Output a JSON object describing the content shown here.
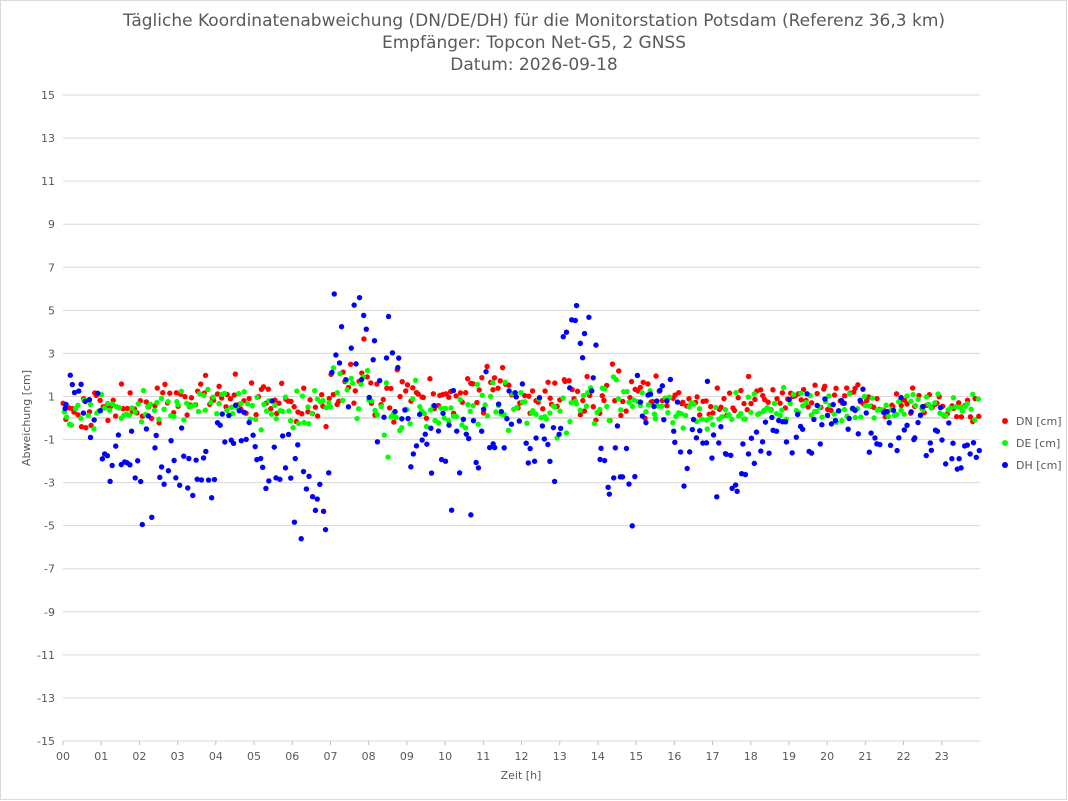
{
  "chart_data": {
    "type": "scatter",
    "title_lines": [
      "Tägliche Koordinatenabweichung (DN/DE/DH) für die Monitorstation Potsdam (Referenz 36,3 km)",
      "Empfänger: Topcon Net-G5, 2 GNSS",
      "Datum: 2026-09-18"
    ],
    "xlabel": "Zeit [h]",
    "ylabel": "Abweichung [cm]",
    "xlim": [
      0,
      24
    ],
    "ylim": [
      -15,
      15
    ],
    "x_ticks": [
      "00",
      "01",
      "02",
      "03",
      "04",
      "05",
      "06",
      "07",
      "08",
      "09",
      "10",
      "11",
      "12",
      "13",
      "14",
      "15",
      "16",
      "17",
      "18",
      "19",
      "20",
      "21",
      "22",
      "23"
    ],
    "y_ticks": [
      "15",
      "13",
      "11",
      "9",
      "7",
      "5",
      "3",
      "1",
      "-1",
      "-3",
      "-5",
      "-7",
      "-9",
      "-11",
      "-13",
      "-15"
    ],
    "legend_position": "right",
    "grid": "horizontal",
    "series": [
      {
        "name": "DN [cm]",
        "color": "#ff0000",
        "hourly_mean": [
          0.4,
          0.6,
          0.7,
          1.0,
          1.1,
          1.0,
          0.4,
          2.0,
          0.9,
          0.9,
          1.1,
          1.3,
          0.8,
          1.2,
          1.0,
          1.1,
          0.7,
          0.9,
          0.8,
          1.0,
          0.9,
          0.8,
          0.7,
          0.4
        ],
        "hourly_spread": [
          0.6,
          0.5,
          0.6,
          0.6,
          0.6,
          0.7,
          0.8,
          1.2,
          0.9,
          0.8,
          0.8,
          0.9,
          0.8,
          1.1,
          0.9,
          0.7,
          0.5,
          0.6,
          0.5,
          0.4,
          0.4,
          0.5,
          0.5,
          0.6
        ]
      },
      {
        "name": "DE [cm]",
        "color": "#00ff00",
        "hourly_mean": [
          0.3,
          0.4,
          0.4,
          0.9,
          0.6,
          0.4,
          0.6,
          1.2,
          0.1,
          0.4,
          0.3,
          0.5,
          0.3,
          0.7,
          0.9,
          0.5,
          0.3,
          0.4,
          0.4,
          0.6,
          0.5,
          0.6,
          0.5,
          0.6
        ],
        "hourly_spread": [
          0.6,
          0.5,
          0.6,
          0.7,
          0.7,
          0.7,
          0.9,
          1.8,
          1.0,
          0.8,
          0.8,
          0.8,
          0.8,
          1.0,
          0.9,
          0.6,
          0.5,
          0.5,
          0.5,
          0.5,
          0.5,
          0.5,
          0.5,
          0.5
        ]
      },
      {
        "name": "DH [cm]",
        "color": "#0000ff",
        "hourly_mean": [
          0.8,
          -1.6,
          -2.2,
          -2.5,
          -0.4,
          -2.6,
          -3.8,
          2.5,
          1.5,
          -1.5,
          -1.0,
          0.6,
          -0.8,
          2.8,
          -2.6,
          0.8,
          -1.2,
          -2.2,
          -0.6,
          -0.3,
          0.3,
          -0.4,
          -0.6,
          -1.4
        ],
        "hourly_spread": [
          1.6,
          1.2,
          1.6,
          1.8,
          1.3,
          1.6,
          1.5,
          3.0,
          2.6,
          1.6,
          2.0,
          1.8,
          1.6,
          2.4,
          1.8,
          1.2,
          1.8,
          1.4,
          1.2,
          1.0,
          1.0,
          1.0,
          1.0,
          1.0
        ]
      }
    ]
  }
}
